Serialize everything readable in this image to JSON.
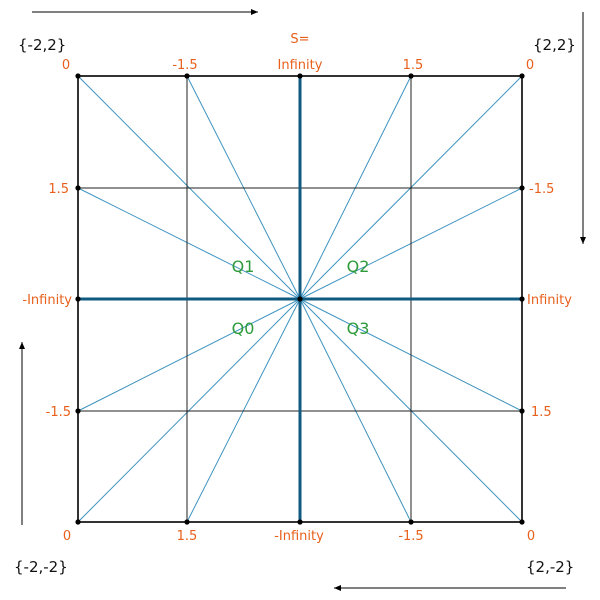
{
  "corners": {
    "top_left": "{-2,2}",
    "top_right": "{2,2}",
    "bottom_left": "{-2,-2}",
    "bottom_right": "{2,-2}"
  },
  "top_labels": {
    "left": "0",
    "mid_left": "-1.5",
    "center_line1": "S=",
    "center_line2": "Infinity",
    "mid_right": "1.5",
    "right": "0"
  },
  "bottom_labels": {
    "left": "0",
    "mid_left": "1.5",
    "center": "-Infinity",
    "mid_right": "-1.5",
    "right": "0"
  },
  "left_labels": {
    "upper": "1.5",
    "middle": "-Infinity",
    "lower": "-1.5"
  },
  "right_labels": {
    "upper": "-1.5",
    "middle": "Infinity",
    "lower": "1.5"
  },
  "quadrants": {
    "q0": "Q0",
    "q1": "Q1",
    "q2": "Q2",
    "q3": "Q3"
  },
  "colors": {
    "frame": "#000000",
    "axis": "#0f5a80",
    "ray": "#3d93bf",
    "label": "#e8601c",
    "quadrant": "#2e9b3a"
  }
}
